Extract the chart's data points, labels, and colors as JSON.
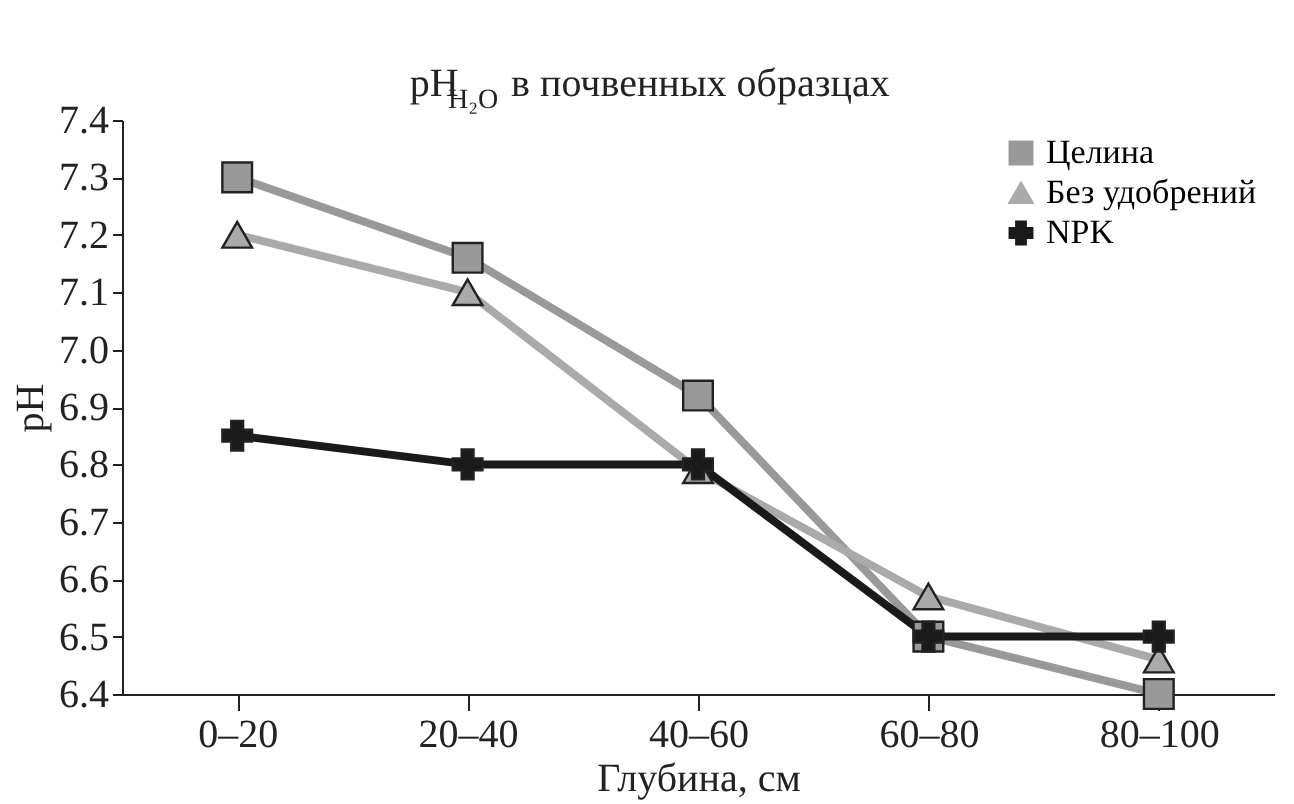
{
  "chart_data": {
    "type": "line",
    "title": "pH$_{H₂O}$ в почвенных образцах",
    "xlabel": "Глубина, см",
    "ylabel": "pH",
    "categories": [
      "0–20",
      "20–40",
      "40–60",
      "60–80",
      "80–100"
    ],
    "series": [
      {
        "name": "Целина",
        "color": "#999999",
        "marker": "square",
        "values": [
          7.3,
          7.16,
          6.92,
          6.5,
          6.4
        ]
      },
      {
        "name": "Без удобрений",
        "color": "#aaaaaa",
        "marker": "triangle",
        "values": [
          7.2,
          7.1,
          6.79,
          6.57,
          6.46
        ]
      },
      {
        "name": "NPK",
        "color": "#1a1a1a",
        "marker": "cross",
        "values": [
          6.85,
          6.8,
          6.8,
          6.5,
          6.5
        ]
      }
    ],
    "ylim": [
      6.4,
      7.4
    ],
    "yticks": [
      6.4,
      6.5,
      6.6,
      6.7,
      6.8,
      6.9,
      {
        "value": 7.0,
        "label": "7.0"
      },
      7.1,
      7.2,
      7.3,
      7.4
    ],
    "grid": false,
    "legend": "top right"
  }
}
